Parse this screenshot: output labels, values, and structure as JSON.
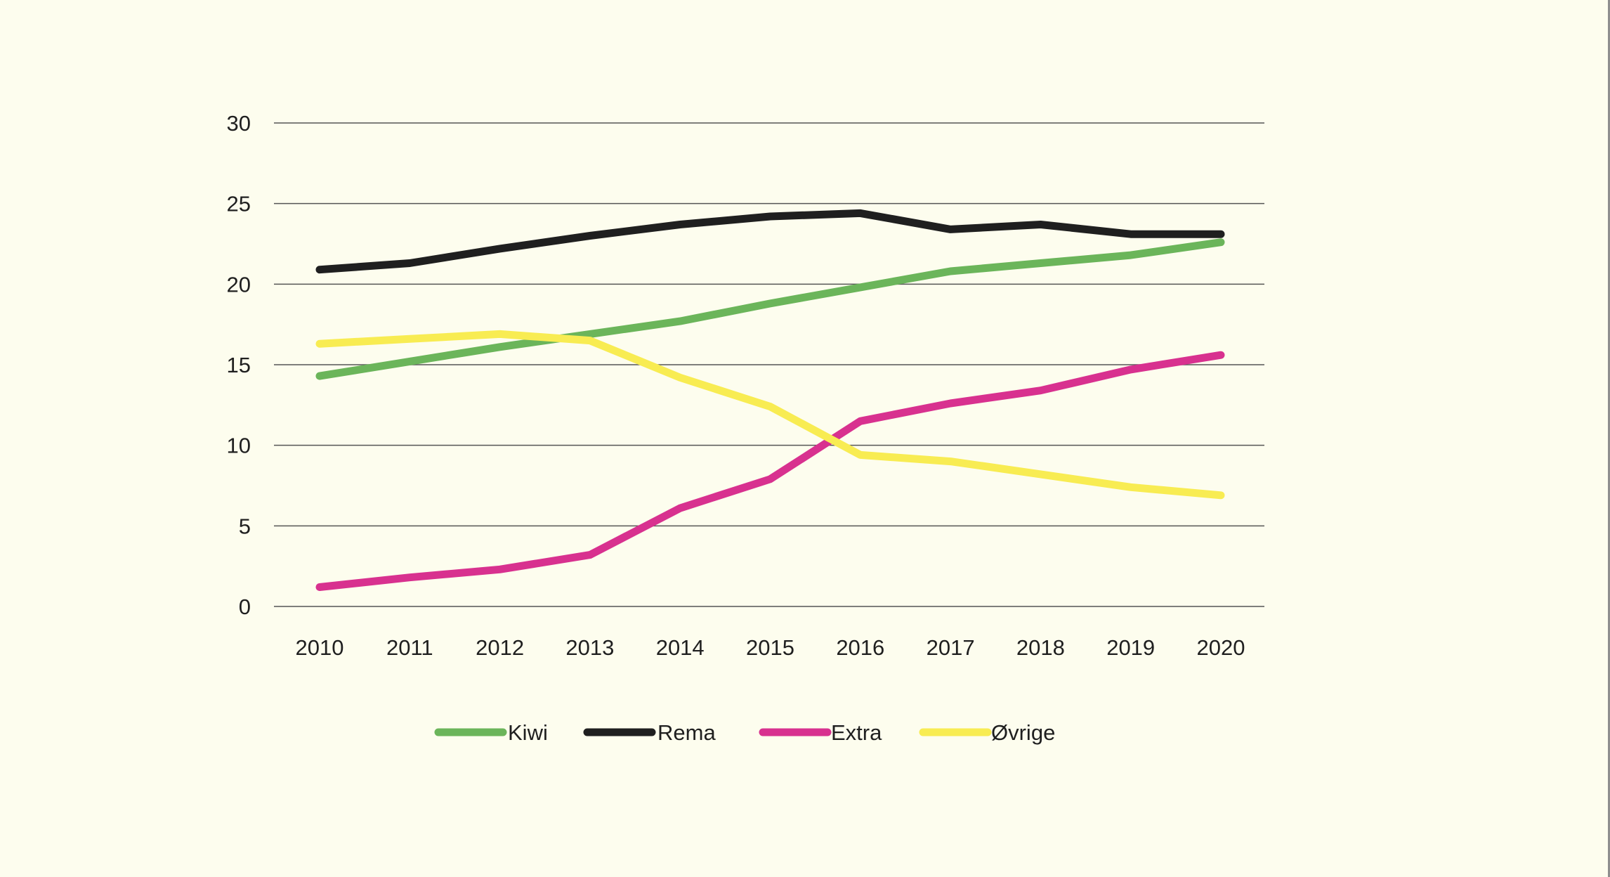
{
  "colors": {
    "background": "#fdfdee",
    "gridline": "#555555",
    "text": "#1f1f1f"
  },
  "chart_data": {
    "type": "line",
    "title": "",
    "xlabel": "",
    "ylabel": "",
    "x": [
      "2010",
      "2011",
      "2012",
      "2013",
      "2014",
      "2015",
      "2016",
      "2017",
      "2018",
      "2019",
      "2020"
    ],
    "ylim": [
      0,
      30
    ],
    "yticks": [
      0,
      5,
      10,
      15,
      20,
      25,
      30
    ],
    "grid": true,
    "legend_position": "bottom",
    "series": [
      {
        "name": "Kiwi",
        "color": "#6bb55a",
        "values": [
          14.3,
          15.2,
          16.1,
          16.9,
          17.7,
          18.8,
          19.8,
          20.8,
          21.3,
          21.8,
          22.6
        ]
      },
      {
        "name": "Rema",
        "color": "#1f1f1f",
        "values": [
          20.9,
          21.3,
          22.2,
          23.0,
          23.7,
          24.2,
          24.4,
          23.4,
          23.7,
          23.1,
          23.1
        ]
      },
      {
        "name": "Extra",
        "color": "#d8318f",
        "values": [
          1.2,
          1.8,
          2.3,
          3.2,
          6.1,
          7.9,
          11.5,
          12.6,
          13.4,
          14.7,
          15.6
        ]
      },
      {
        "name": "Øvrige",
        "color": "#f8ec52",
        "values": [
          16.3,
          16.6,
          16.9,
          16.5,
          14.2,
          12.4,
          9.4,
          9.0,
          8.2,
          7.4,
          6.9
        ]
      }
    ]
  }
}
